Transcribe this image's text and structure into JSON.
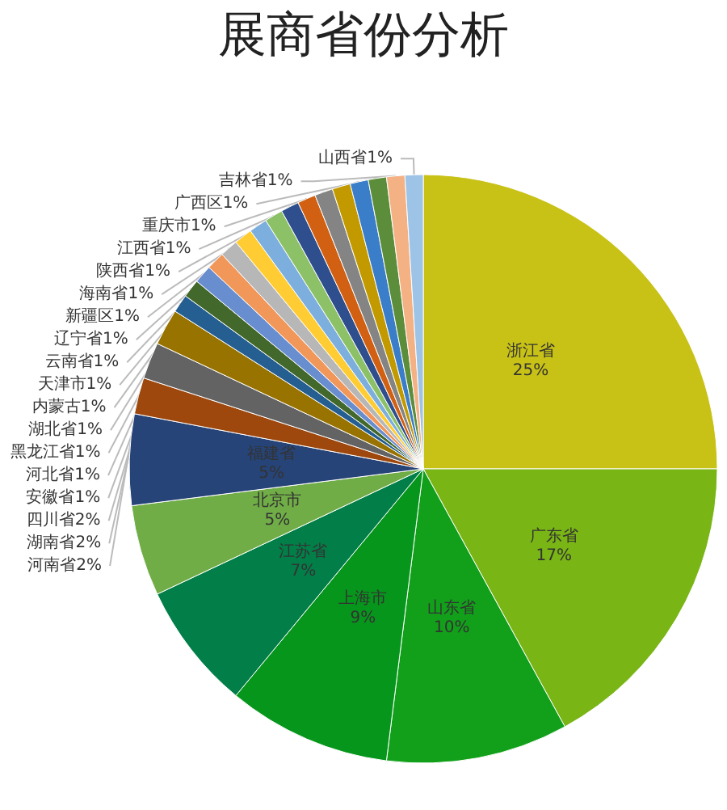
{
  "chart_data": {
    "type": "pie",
    "title": "展商省份分析",
    "categories": [
      "浙江省",
      "广东省",
      "山东省",
      "上海市",
      "江苏省",
      "北京市",
      "福建省",
      "河南省",
      "湖南省",
      "四川省",
      "安徽省",
      "河北省",
      "黑龙江省",
      "湖北省",
      "内蒙古",
      "天津市",
      "云南省",
      "辽宁省",
      "新疆区",
      "海南省",
      "陕西省",
      "江西省",
      "重庆市",
      "广西区",
      "吉林省",
      "山西省"
    ],
    "values": [
      25,
      17,
      10,
      9,
      7,
      5,
      5,
      2,
      2,
      2,
      1,
      1,
      1,
      1,
      1,
      1,
      1,
      1,
      1,
      1,
      1,
      1,
      1,
      1,
      1,
      1
    ],
    "colors": [
      "#c8c217",
      "#79b515",
      "#12a01a",
      "#07961c",
      "#027e48",
      "#71ad47",
      "#264478",
      "#9e480e",
      "#636363",
      "#997300",
      "#255e91",
      "#43682b",
      "#698ed0",
      "#f1975a",
      "#b7b7b7",
      "#ffcd33",
      "#7cafdd",
      "#8cc168",
      "#2e4e8e",
      "#d26012",
      "#848484",
      "#c29a00",
      "#3a7dc9",
      "#5b8d3a",
      "#f4b183",
      "#9dc3e6"
    ],
    "value_labels": [
      "25%",
      "17%",
      "10%",
      "9%",
      "7%",
      "5%",
      "5%",
      "2%",
      "2%",
      "2%",
      "1%",
      "1%",
      "1%",
      "1%",
      "1%",
      "1%",
      "1%",
      "1%",
      "1%",
      "1%",
      "1%",
      "1%",
      "1%",
      "1%",
      "1%",
      "1%"
    ]
  }
}
